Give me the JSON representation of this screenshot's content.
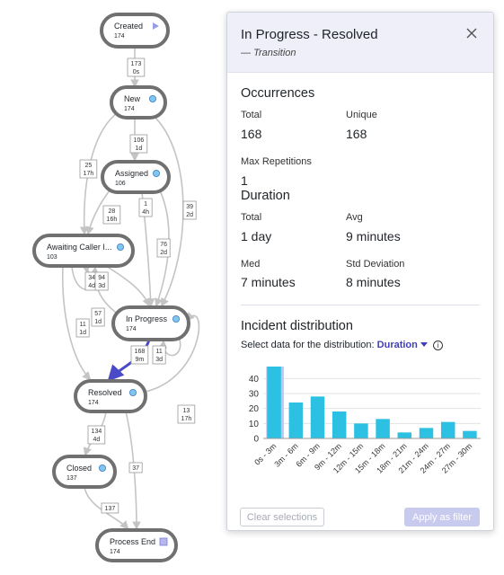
{
  "process_map": {
    "nodes": [
      {
        "id": "created",
        "title": "Created",
        "count": "174",
        "marker": "triangle",
        "marker_color": "#9b9ee6"
      },
      {
        "id": "new",
        "title": "New",
        "count": "174",
        "marker": "circle",
        "marker_color": "#7fc6f0"
      },
      {
        "id": "assigned",
        "title": "Assigned",
        "count": "106",
        "marker": "circle",
        "marker_color": "#7fc6f0"
      },
      {
        "id": "awaiting",
        "title": "Awaiting Caller I...",
        "count": "103",
        "marker": "circle",
        "marker_color": "#7fc6f0"
      },
      {
        "id": "inprogress",
        "title": "In Progress",
        "count": "174",
        "marker": "circle",
        "marker_color": "#7fc6f0"
      },
      {
        "id": "resolved",
        "title": "Resolved",
        "count": "174",
        "marker": "circle",
        "marker_color": "#7fc6f0"
      },
      {
        "id": "closed",
        "title": "Closed",
        "count": "137",
        "marker": "circle",
        "marker_color": "#7fc6f0"
      },
      {
        "id": "end",
        "title": "Process End",
        "count": "174",
        "marker": "square",
        "marker_color": "#b5b7ec"
      }
    ],
    "edge_labels": [
      {
        "id": "created-new",
        "lines": [
          "173",
          "0s"
        ]
      },
      {
        "id": "new-assigned",
        "lines": [
          "106",
          "1d"
        ]
      },
      {
        "id": "new-awaiting",
        "lines": [
          "25",
          "17h"
        ]
      },
      {
        "id": "new-inprogress",
        "lines": [
          "39",
          "2d"
        ]
      },
      {
        "id": "assigned-awaiting",
        "lines": [
          "28",
          "16h"
        ]
      },
      {
        "id": "assigned-inprogress-a",
        "lines": [
          "1",
          "4h"
        ]
      },
      {
        "id": "assigned-inprogress-b",
        "lines": [
          "76",
          "2d"
        ]
      },
      {
        "id": "awaiting-loop",
        "lines": [
          "34",
          "4d"
        ]
      },
      {
        "id": "awaiting-inprogress",
        "lines": [
          "94",
          "3d"
        ]
      },
      {
        "id": "inprogress-awaiting",
        "lines": [
          "57",
          "1d"
        ]
      },
      {
        "id": "awaiting-resolved",
        "lines": [
          "11",
          "1d"
        ]
      },
      {
        "id": "inprogress-resolved",
        "lines": [
          "168",
          "9m"
        ]
      },
      {
        "id": "inprogress-loop",
        "lines": [
          "11",
          "3d"
        ]
      },
      {
        "id": "resolved-inprogress",
        "lines": [
          "13",
          "17h"
        ]
      },
      {
        "id": "resolved-closed",
        "lines": [
          "134",
          "4d"
        ]
      },
      {
        "id": "resolved-end",
        "lines": [
          "37"
        ]
      },
      {
        "id": "closed-end",
        "lines": [
          "137"
        ]
      }
    ],
    "colors": {
      "selected_edge": "#4a4ac8",
      "node_border": "#707070",
      "edge": "#c4c4c4"
    }
  },
  "panel": {
    "title": "In Progress - Resolved",
    "subtitle_dash": "—",
    "subtitle": "Transition",
    "occurrences": {
      "heading": "Occurrences",
      "total_label": "Total",
      "total_value": "168",
      "unique_label": "Unique",
      "unique_value": "168",
      "maxrep_label": "Max Repetitions",
      "maxrep_value": "1"
    },
    "duration": {
      "heading": "Duration",
      "total_label": "Total",
      "total_value": "1 day",
      "avg_label": "Avg",
      "avg_value": "9 minutes",
      "med_label": "Med",
      "med_value": "7 minutes",
      "std_label": "Std Deviation",
      "std_value": "8 minutes"
    },
    "distribution": {
      "heading": "Incident distribution",
      "select_label": "Select data for the distribution:",
      "dropdown_value": "Duration",
      "info_icon": "i"
    },
    "buttons": {
      "clear": "Clear selections",
      "apply": "Apply as filter"
    },
    "icons": {
      "close": "close-icon",
      "info": "info-icon",
      "dropdown": "caret-down-icon"
    }
  },
  "chart_data": {
    "type": "bar",
    "categories": [
      "0s - 3m",
      "3m - 6m",
      "6m - 9m",
      "9m - 12m",
      "12m - 15m",
      "15m - 18m",
      "18m - 21m",
      "21m - 24m",
      "24m - 27m",
      "27m - 30m"
    ],
    "values": [
      48,
      24,
      28,
      18,
      10,
      13,
      4,
      7,
      11,
      5
    ],
    "ylim": [
      0,
      48
    ],
    "yticks": [
      0,
      10,
      20,
      30,
      40
    ],
    "grid": true,
    "highlight_index": 0,
    "colors": {
      "bar": "#2cc1e3",
      "highlight": "#b9c6f0",
      "grid": "#e3e3e3"
    }
  }
}
